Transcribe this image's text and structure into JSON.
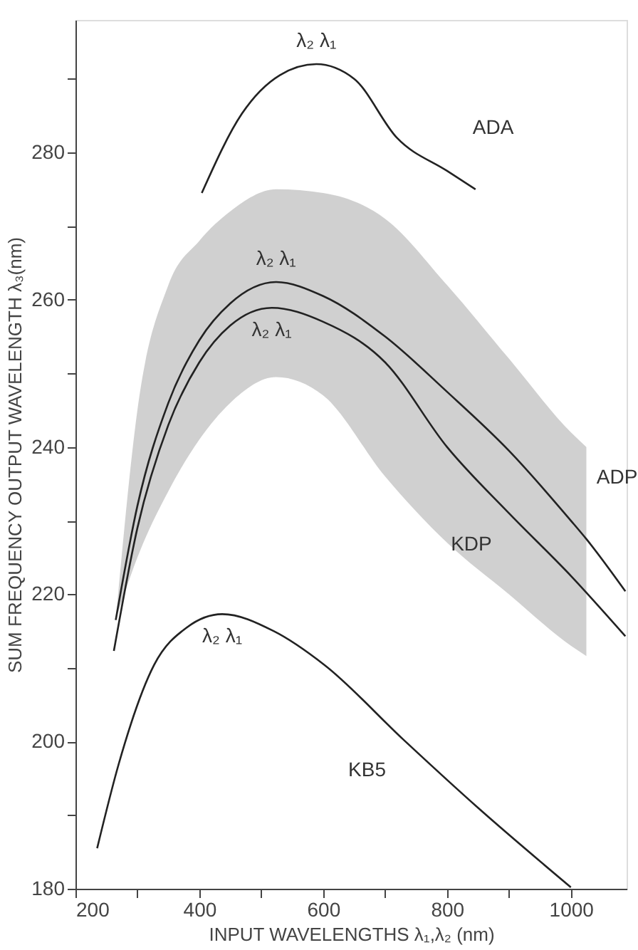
{
  "chart_data": {
    "type": "line",
    "xlabel": "INPUT WAVELENGTHS  λ₁,λ₂ (nm)",
    "ylabel": "SUM FREQUENCY  OUTPUT WAVELENGTH λ₃(nm)",
    "xlim": [
      200,
      1090
    ],
    "ylim": [
      180,
      298
    ],
    "xticks": [
      200,
      {
        "value": 300,
        "label": null
      },
      400,
      {
        "value": 500,
        "label": null
      },
      600,
      {
        "value": 700,
        "label": null
      },
      800,
      {
        "value": 900,
        "label": null
      },
      1000
    ],
    "yticks": [
      180,
      {
        "value": 190,
        "label": null
      },
      200,
      {
        "value": 210,
        "label": null
      },
      220,
      {
        "value": 230,
        "label": null
      },
      240,
      {
        "value": 250,
        "label": null
      },
      260,
      {
        "value": 270,
        "label": null
      },
      280,
      {
        "value": 290,
        "label": null
      }
    ],
    "grid": false,
    "legend": false,
    "marker": "none",
    "line_style": "solid",
    "series": [
      {
        "name": "ADA",
        "color": "#222222",
        "x": [
          404,
          469,
          530,
          589,
          650,
          719,
          800,
          846
        ],
        "values": [
          274.5,
          285.3,
          290.5,
          292,
          290,
          282,
          277.5,
          275
        ]
      },
      {
        "name": "ADP",
        "color": "#222222",
        "x": [
          265,
          300,
          350,
          400,
          450,
          524,
          600,
          700,
          800,
          900,
          1000,
          1025,
          1088
        ],
        "values": [
          216.5,
          232,
          246,
          254.5,
          259.5,
          262.4,
          260.5,
          255,
          247.5,
          239.5,
          230,
          227.5,
          220.4
        ],
        "lower": [
          216.5,
          225,
          234,
          241,
          246,
          249.5,
          247,
          236,
          227,
          220,
          213,
          211.6,
          null
        ],
        "upper": [
          216.5,
          245,
          262,
          268,
          272,
          275,
          274.5,
          271,
          262,
          252,
          242,
          240,
          null
        ]
      },
      {
        "name": "KDP",
        "color": "#222222",
        "x": [
          262,
          300,
          350,
          400,
          450,
          517,
          600,
          700,
          800,
          900,
          1000,
          1088
        ],
        "values": [
          212.3,
          229,
          243,
          251.5,
          256.5,
          258.9,
          257,
          251.5,
          240,
          231,
          222.5,
          214.3
        ]
      },
      {
        "name": "KB5",
        "color": "#222222",
        "x": [
          235,
          270,
          327,
          380,
          437,
          520,
          602,
          729,
          850,
          1000
        ],
        "values": [
          185.5,
          197,
          210.4,
          215.5,
          217.3,
          215,
          210.4,
          200.3,
          191,
          180.2
        ]
      }
    ],
    "annotations": [
      "λ₂ λ₁",
      "λ₂ λ₁",
      "λ₂ λ₁",
      "λ₂ λ₁"
    ]
  }
}
